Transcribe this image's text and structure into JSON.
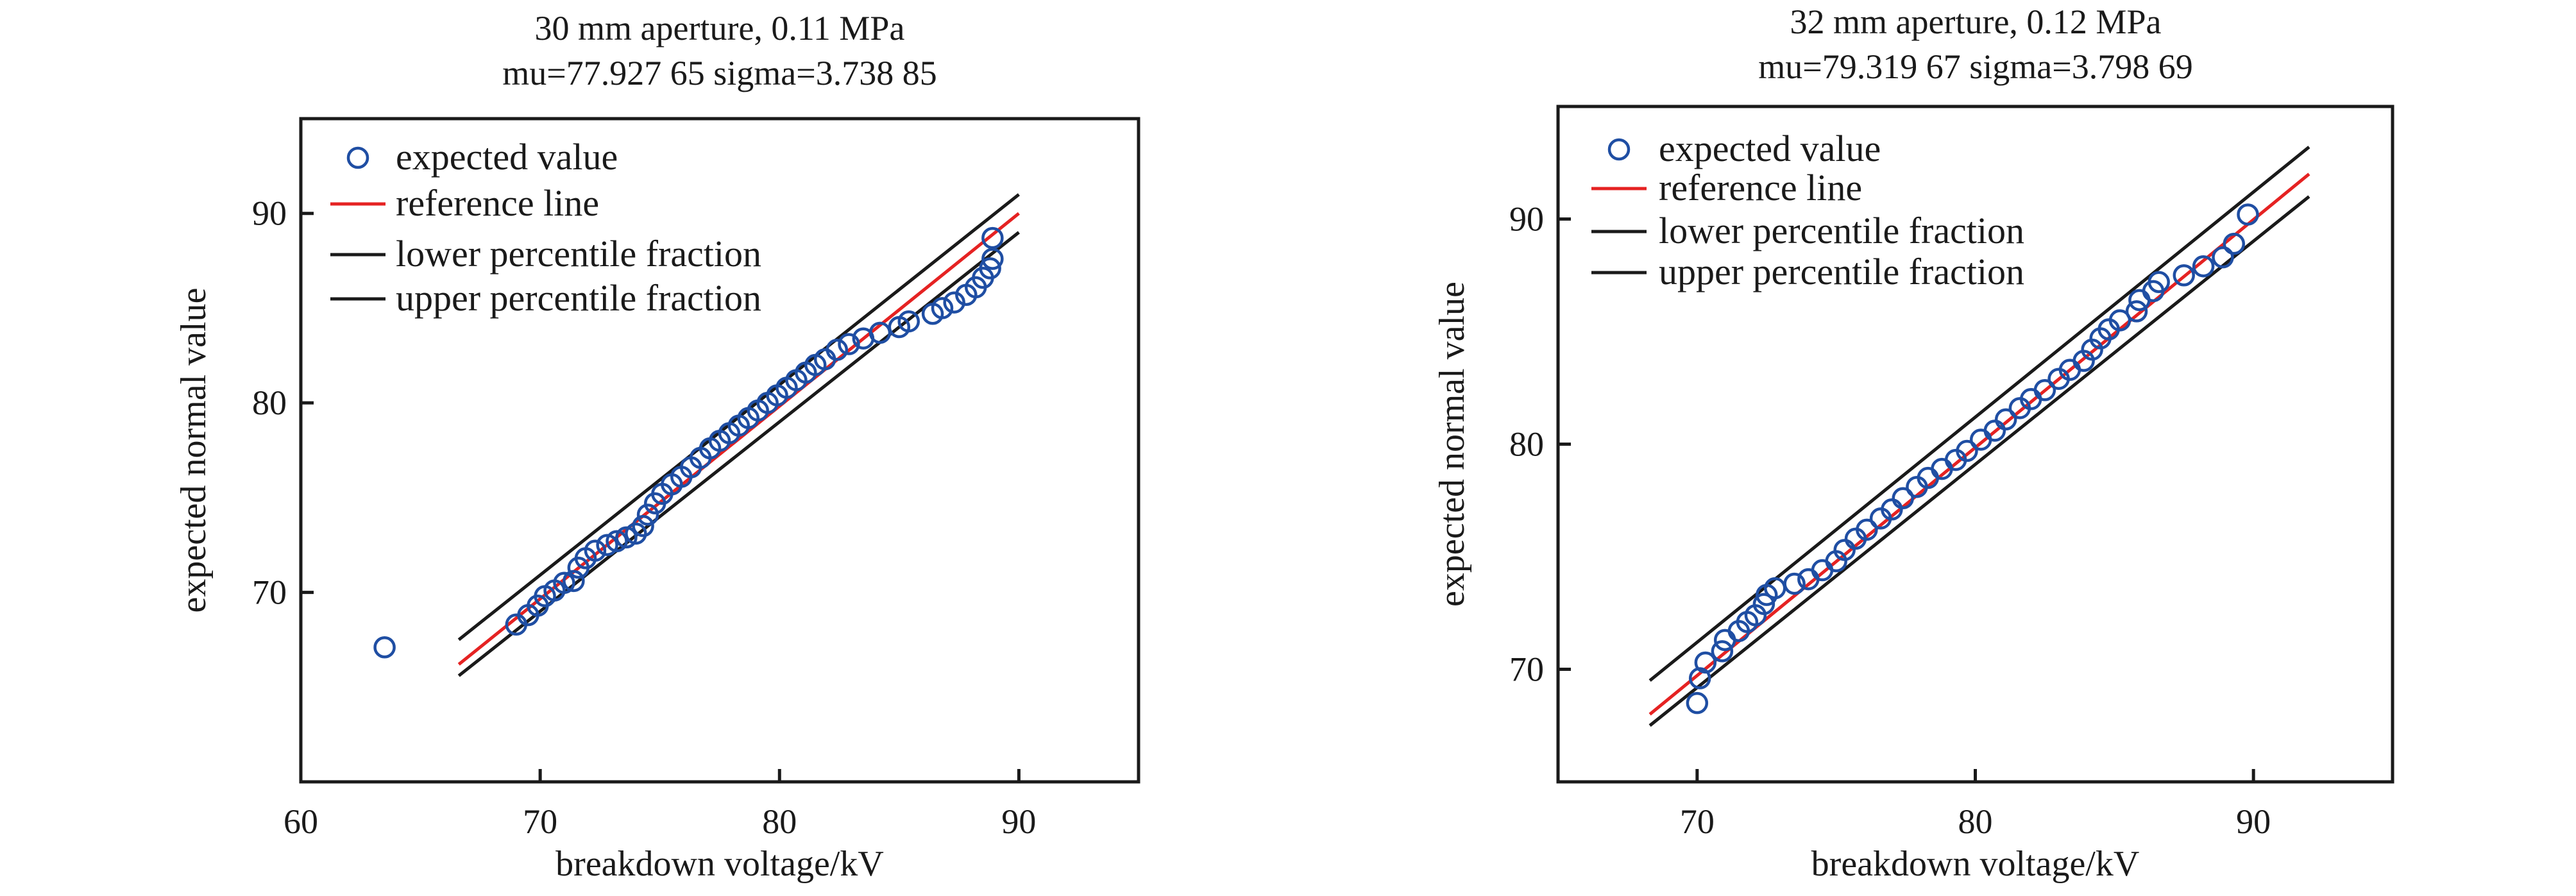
{
  "chart_data": [
    {
      "type": "scatter",
      "title": "30 mm aperture, 0.11 MPa",
      "subtitle": "mu=77.927 65  sigma=3.738 85",
      "xlabel": "breakdown voltage/kV",
      "ylabel": "expected normal value",
      "xlim": [
        60,
        95
      ],
      "ylim": [
        60,
        95
      ],
      "xticks": [
        "60",
        "70",
        "80",
        "90"
      ],
      "yticks": [
        "70",
        "80",
        "90"
      ],
      "legend_position": "top-left",
      "legend": [
        "expected value",
        "reference line",
        "lower percentile fraction",
        "upper percentile fraction"
      ],
      "points": [
        [
          63.5,
          67.1
        ],
        [
          69,
          68.3
        ],
        [
          69.5,
          68.8
        ],
        [
          69.9,
          69.3
        ],
        [
          70.2,
          69.8
        ],
        [
          70.6,
          70.1
        ],
        [
          71,
          70.5
        ],
        [
          71.4,
          70.6
        ],
        [
          71.6,
          71.3
        ],
        [
          71.9,
          71.8
        ],
        [
          72.3,
          72.2
        ],
        [
          72.8,
          72.5
        ],
        [
          73.2,
          72.7
        ],
        [
          73.6,
          72.9
        ],
        [
          74,
          73.1
        ],
        [
          74.3,
          73.5
        ],
        [
          74.5,
          74.1
        ],
        [
          74.8,
          74.7
        ],
        [
          75.1,
          75.2
        ],
        [
          75.5,
          75.7
        ],
        [
          75.9,
          76.1
        ],
        [
          76.3,
          76.6
        ],
        [
          76.7,
          77.1
        ],
        [
          77.1,
          77.6
        ],
        [
          77.5,
          78.0
        ],
        [
          77.9,
          78.4
        ],
        [
          78.3,
          78.8
        ],
        [
          78.7,
          79.2
        ],
        [
          79.1,
          79.6
        ],
        [
          79.5,
          80.0
        ],
        [
          79.9,
          80.4
        ],
        [
          80.3,
          80.8
        ],
        [
          80.7,
          81.2
        ],
        [
          81.1,
          81.6
        ],
        [
          81.5,
          82.0
        ],
        [
          81.9,
          82.3
        ],
        [
          82.4,
          82.8
        ],
        [
          82.9,
          83.1
        ],
        [
          83.5,
          83.4
        ],
        [
          84.2,
          83.7
        ],
        [
          85.0,
          84.0
        ],
        [
          85.4,
          84.3
        ],
        [
          86.4,
          84.7
        ],
        [
          86.8,
          85.0
        ],
        [
          87.3,
          85.3
        ],
        [
          87.8,
          85.7
        ],
        [
          88.2,
          86.1
        ],
        [
          88.5,
          86.6
        ],
        [
          88.8,
          87.1
        ],
        [
          88.9,
          87.6
        ],
        [
          88.9,
          88.7
        ]
      ],
      "reference_line": [
        [
          66.6,
          66.2
        ],
        [
          90,
          90
        ]
      ],
      "upper_line": [
        [
          66.6,
          67.5
        ],
        [
          90,
          91
        ]
      ],
      "lower_line": [
        [
          66.6,
          65.6
        ],
        [
          90,
          89
        ]
      ]
    },
    {
      "type": "scatter",
      "title": "32 mm aperture, 0.12 MPa",
      "subtitle": "mu=79.319 67  sigma=3.798 69",
      "xlabel": "breakdown voltage/kV",
      "ylabel": "expected normal value",
      "xlim": [
        65,
        95
      ],
      "ylim": [
        65,
        95
      ],
      "xticks": [
        "70",
        "80",
        "90"
      ],
      "yticks": [
        "70",
        "80",
        "90"
      ],
      "legend_position": "top-left",
      "legend": [
        "expected value",
        "reference line",
        "lower percentile fraction",
        "upper percentile fraction"
      ],
      "points": [
        [
          70,
          68.5
        ],
        [
          70.1,
          69.6
        ],
        [
          70.3,
          70.3
        ],
        [
          70.9,
          70.8
        ],
        [
          71,
          71.3
        ],
        [
          71.5,
          71.7
        ],
        [
          71.8,
          72.1
        ],
        [
          72.1,
          72.4
        ],
        [
          72.4,
          72.9
        ],
        [
          72.5,
          73.3
        ],
        [
          72.8,
          73.6
        ],
        [
          73.5,
          73.8
        ],
        [
          74,
          74.0
        ],
        [
          74.5,
          74.4
        ],
        [
          75,
          74.8
        ],
        [
          75.3,
          75.3
        ],
        [
          75.7,
          75.8
        ],
        [
          76.1,
          76.2
        ],
        [
          76.6,
          76.7
        ],
        [
          77,
          77.1
        ],
        [
          77.4,
          77.6
        ],
        [
          77.9,
          78.1
        ],
        [
          78.3,
          78.5
        ],
        [
          78.8,
          78.9
        ],
        [
          79.3,
          79.3
        ],
        [
          79.7,
          79.7
        ],
        [
          80.2,
          80.2
        ],
        [
          80.7,
          80.6
        ],
        [
          81.1,
          81.1
        ],
        [
          81.6,
          81.6
        ],
        [
          82,
          82.0
        ],
        [
          82.5,
          82.4
        ],
        [
          83,
          82.9
        ],
        [
          83.4,
          83.3
        ],
        [
          83.9,
          83.7
        ],
        [
          84.2,
          84.2
        ],
        [
          84.5,
          84.7
        ],
        [
          84.8,
          85.1
        ],
        [
          85.2,
          85.5
        ],
        [
          85.8,
          85.9
        ],
        [
          85.9,
          86.4
        ],
        [
          86.4,
          86.8
        ],
        [
          86.6,
          87.2
        ],
        [
          87.5,
          87.5
        ],
        [
          88.2,
          87.9
        ],
        [
          88.9,
          88.3
        ],
        [
          89.3,
          88.9
        ],
        [
          89.8,
          90.2
        ]
      ],
      "reference_line": [
        [
          68.3,
          68.0
        ],
        [
          92,
          92
        ]
      ],
      "upper_line": [
        [
          68.3,
          69.5
        ],
        [
          92,
          93.2
        ]
      ],
      "lower_line": [
        [
          68.3,
          67.5
        ],
        [
          92,
          91
        ]
      ]
    }
  ],
  "colors": {
    "points": "#1f4ea3",
    "reference": "#e52222",
    "bounds": "#1a1a1a"
  }
}
